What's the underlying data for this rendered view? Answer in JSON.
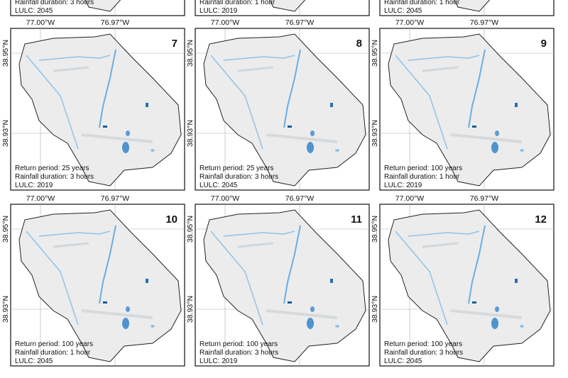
{
  "axes": {
    "lon": [
      "77.00°W",
      "76.97°W"
    ],
    "lat": [
      "38.95°N",
      "38.93°N"
    ]
  },
  "top_row": [
    {
      "duration": "Rainfall duration: 3 hours",
      "lulc": "LULC: 2045"
    },
    {
      "duration": "Rainfall duration: 1 hour",
      "lulc": "LULC: 2019"
    },
    {
      "duration": "Rainfall duration: 1 hour",
      "lulc": "LULC: 2045"
    }
  ],
  "panels": [
    {
      "number": "7",
      "return_period": "Return period: 25 years",
      "duration": "Rainfall duration: 3 hours",
      "lulc": "LULC: 2019"
    },
    {
      "number": "8",
      "return_period": "Return period: 25 years",
      "duration": "Rainfall duration: 3 hours",
      "lulc": "LULC: 2045"
    },
    {
      "number": "9",
      "return_period": "Return period: 100 years",
      "duration": "Rainfall duration: 1 hour",
      "lulc": "LULC: 2019"
    },
    {
      "number": "10",
      "return_period": "Return period: 100 years",
      "duration": "Rainfall duration: 1 hour",
      "lulc": "LULC: 2045"
    },
    {
      "number": "11",
      "return_period": "Return period: 100 years",
      "duration": "Rainfall duration: 3 hours",
      "lulc": "LULC: 2019"
    },
    {
      "number": "12",
      "return_period": "Return period: 100 years",
      "duration": "Rainfall duration: 3 hours",
      "lulc": "LULC: 2045"
    }
  ]
}
